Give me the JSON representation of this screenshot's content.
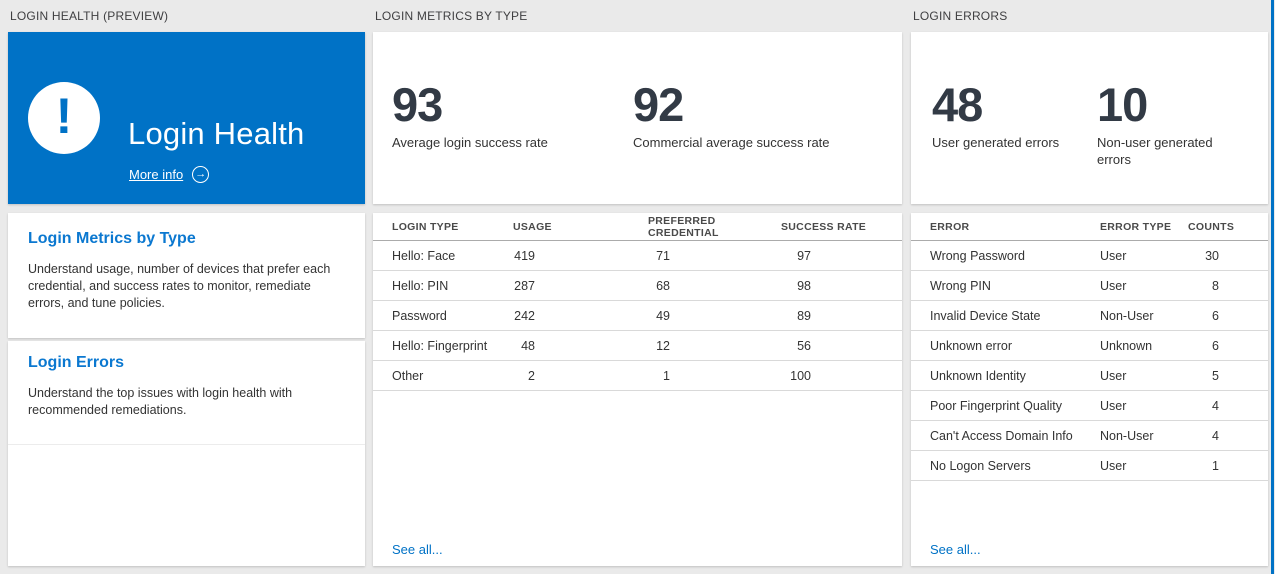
{
  "page": {
    "background": "#eaeaea",
    "accent_blue": "#0072c6",
    "heading_blue": "#0b78d0",
    "number_color": "#323a45"
  },
  "login_health": {
    "header": "LOGIN HEALTH (PREVIEW)",
    "hero": {
      "title": "Login Health",
      "more_info_label": "More info",
      "arrow_glyph": "→",
      "icon_glyph": "!"
    },
    "sections": [
      {
        "title": "Login Metrics by Type",
        "description": "Understand usage, number of devices that prefer each credential, and success rates to monitor, remediate errors, and tune policies."
      },
      {
        "title": "Login Errors",
        "description": "Understand the top issues with login health with recommended remediations."
      }
    ]
  },
  "login_metrics": {
    "header": "LOGIN METRICS BY TYPE",
    "metrics": [
      {
        "value": "93",
        "label": "Average login success rate"
      },
      {
        "value": "92",
        "label": "Commercial average success rate"
      }
    ],
    "table": {
      "columns": [
        "LOGIN TYPE",
        "USAGE",
        "PREFERRED CREDENTIAL",
        "SUCCESS RATE"
      ],
      "rows": [
        [
          "Hello: Face",
          "419",
          "71",
          "97"
        ],
        [
          "Hello: PIN",
          "287",
          "68",
          "98"
        ],
        [
          "Password",
          "242",
          "49",
          "89"
        ],
        [
          "Hello: Fingerprint",
          "48",
          "12",
          "56"
        ],
        [
          "Other",
          "2",
          "1",
          "100"
        ]
      ],
      "see_all": "See all..."
    }
  },
  "login_errors": {
    "header": "LOGIN ERRORS",
    "metrics": [
      {
        "value": "48",
        "label": "User generated errors"
      },
      {
        "value": "10",
        "label": "Non-user generated errors"
      }
    ],
    "table": {
      "columns": [
        "ERROR",
        "ERROR TYPE",
        "COUNTS"
      ],
      "rows": [
        [
          "Wrong Password",
          "User",
          "30"
        ],
        [
          "Wrong PIN",
          "User",
          "8"
        ],
        [
          "Invalid Device State",
          "Non-User",
          "6"
        ],
        [
          "Unknown error",
          "Unknown",
          "6"
        ],
        [
          "Unknown Identity",
          "User",
          "5"
        ],
        [
          "Poor Fingerprint Quality",
          "User",
          "4"
        ],
        [
          "Can't Access Domain Info",
          "Non-User",
          "4"
        ],
        [
          "No Logon Servers",
          "User",
          "1"
        ]
      ],
      "see_all": "See all..."
    }
  }
}
